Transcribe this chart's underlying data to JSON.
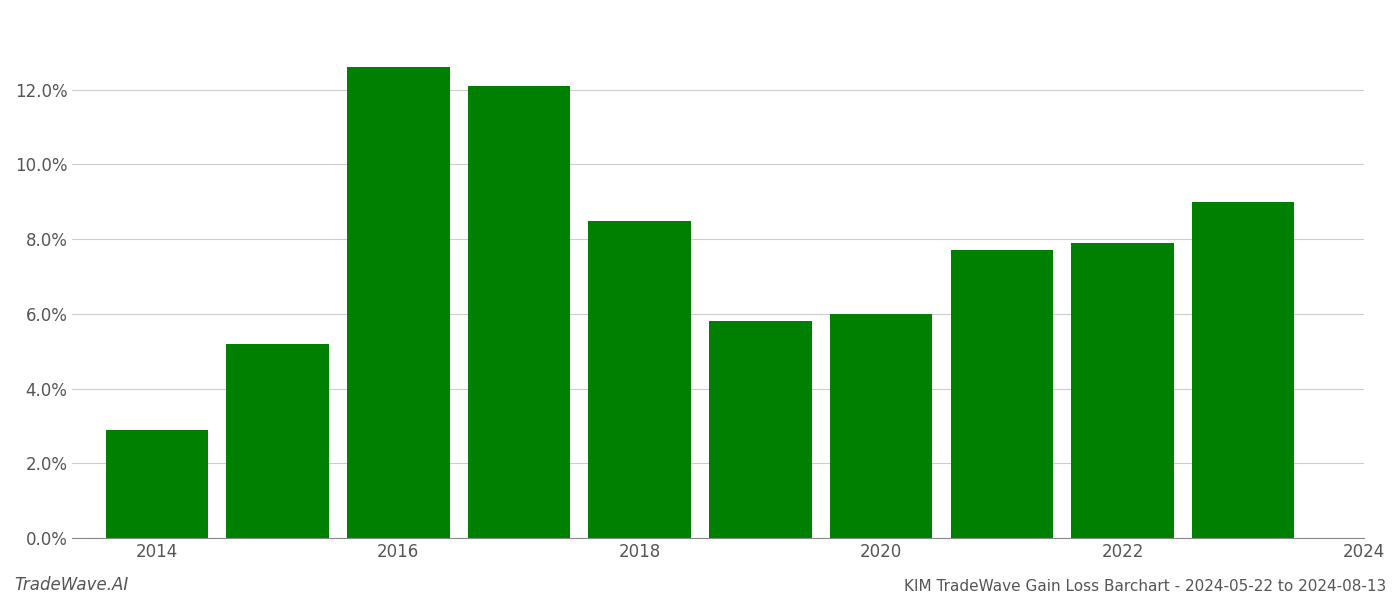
{
  "years": [
    2014,
    2015,
    2016,
    2017,
    2018,
    2019,
    2020,
    2021,
    2022,
    2023
  ],
  "values": [
    0.029,
    0.052,
    0.126,
    0.121,
    0.085,
    0.058,
    0.06,
    0.077,
    0.079,
    0.09
  ],
  "bar_color": "#008000",
  "background_color": "#ffffff",
  "grid_color": "#cccccc",
  "title_text": "KIM TradeWave Gain Loss Barchart - 2024-05-22 to 2024-08-13",
  "watermark_text": "TradeWave.AI",
  "ylim_min": 0.0,
  "ylim_max": 0.14,
  "ytick_values": [
    0.0,
    0.02,
    0.04,
    0.06,
    0.08,
    0.1,
    0.12
  ],
  "title_fontsize": 11,
  "watermark_fontsize": 12,
  "tick_fontsize": 12,
  "bar_width": 0.85,
  "xtick_labels_at_indices": [
    0,
    2,
    4,
    6,
    8,
    10
  ],
  "xtick_labels": [
    "2014",
    "2016",
    "2018",
    "2020",
    "2022",
    "2024"
  ]
}
